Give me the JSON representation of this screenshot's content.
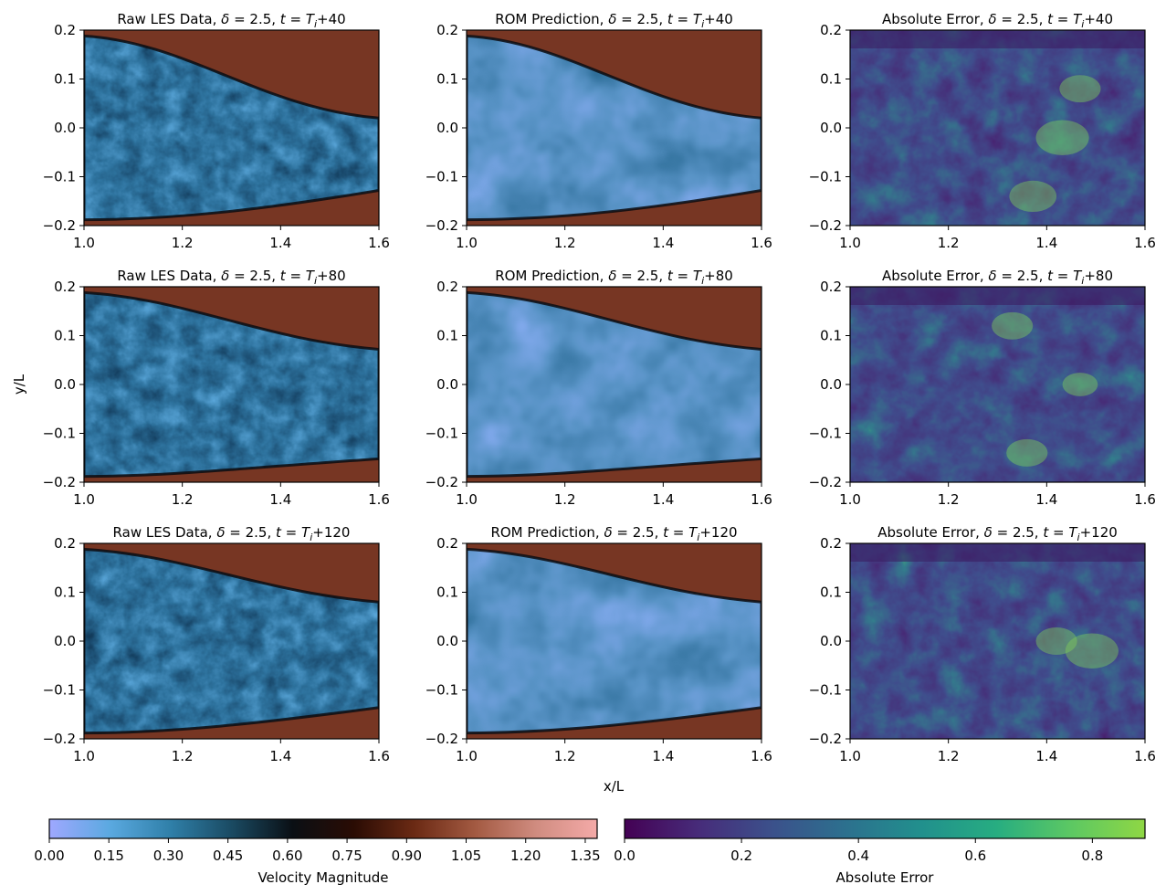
{
  "chart_data": {
    "type": "heatmap",
    "supxlabel": "x/L",
    "supylabel": "y/L",
    "panels": [
      {
        "field": "raw",
        "title_prefix": "Raw LES Data, ",
        "time": "+40"
      },
      {
        "field": "rom",
        "title_prefix": "ROM Prediction, ",
        "time": "+40"
      },
      {
        "field": "error",
        "title_prefix": "Absolute Error, ",
        "time": "+40"
      },
      {
        "field": "raw",
        "title_prefix": "Raw LES Data, ",
        "time": "+80"
      },
      {
        "field": "rom",
        "title_prefix": "ROM Prediction, ",
        "time": "+80"
      },
      {
        "field": "error",
        "title_prefix": "Absolute Error, ",
        "time": "+80"
      },
      {
        "field": "raw",
        "title_prefix": "Raw LES Data, ",
        "time": "+120"
      },
      {
        "field": "rom",
        "title_prefix": "ROM Prediction, ",
        "time": "+120"
      },
      {
        "field": "error",
        "title_prefix": "Absolute Error, ",
        "time": "+120"
      }
    ],
    "delta_value": "2.5",
    "xlim": [
      1.0,
      1.6
    ],
    "ylim": [
      -0.2,
      0.2
    ],
    "xticks": [
      "1.0",
      "1.2",
      "1.4",
      "1.6"
    ],
    "yticks": [
      "0.2",
      "0.1",
      "0.0",
      "−0.1",
      "−0.2"
    ],
    "colorbars": [
      {
        "label": "Velocity Magnitude",
        "range": [
          0.0,
          1.38
        ],
        "ticks": [
          "0.00",
          "0.15",
          "0.30",
          "0.45",
          "0.60",
          "0.75",
          "0.90",
          "1.05",
          "1.20",
          "1.35"
        ],
        "tick_values": [
          0.0,
          0.15,
          0.3,
          0.45,
          0.6,
          0.75,
          0.9,
          1.05,
          1.2,
          1.35
        ],
        "colors": [
          "#9fa8ff",
          "#5aa9e0",
          "#2f7fa8",
          "#1a4a62",
          "#0a0f14",
          "#2a0c04",
          "#6b2a14",
          "#a35a42",
          "#d08c80",
          "#f4aaa8"
        ]
      },
      {
        "label": "Absolute Error",
        "range": [
          0.0,
          0.89
        ],
        "ticks": [
          "0.0",
          "0.2",
          "0.4",
          "0.6",
          "0.8"
        ],
        "tick_values": [
          0.0,
          0.2,
          0.4,
          0.6,
          0.8
        ],
        "colors": [
          "#440154",
          "#472c7a",
          "#3b518b",
          "#2c718e",
          "#21908d",
          "#27ad81",
          "#5cc863",
          "#8fd744"
        ]
      }
    ]
  }
}
